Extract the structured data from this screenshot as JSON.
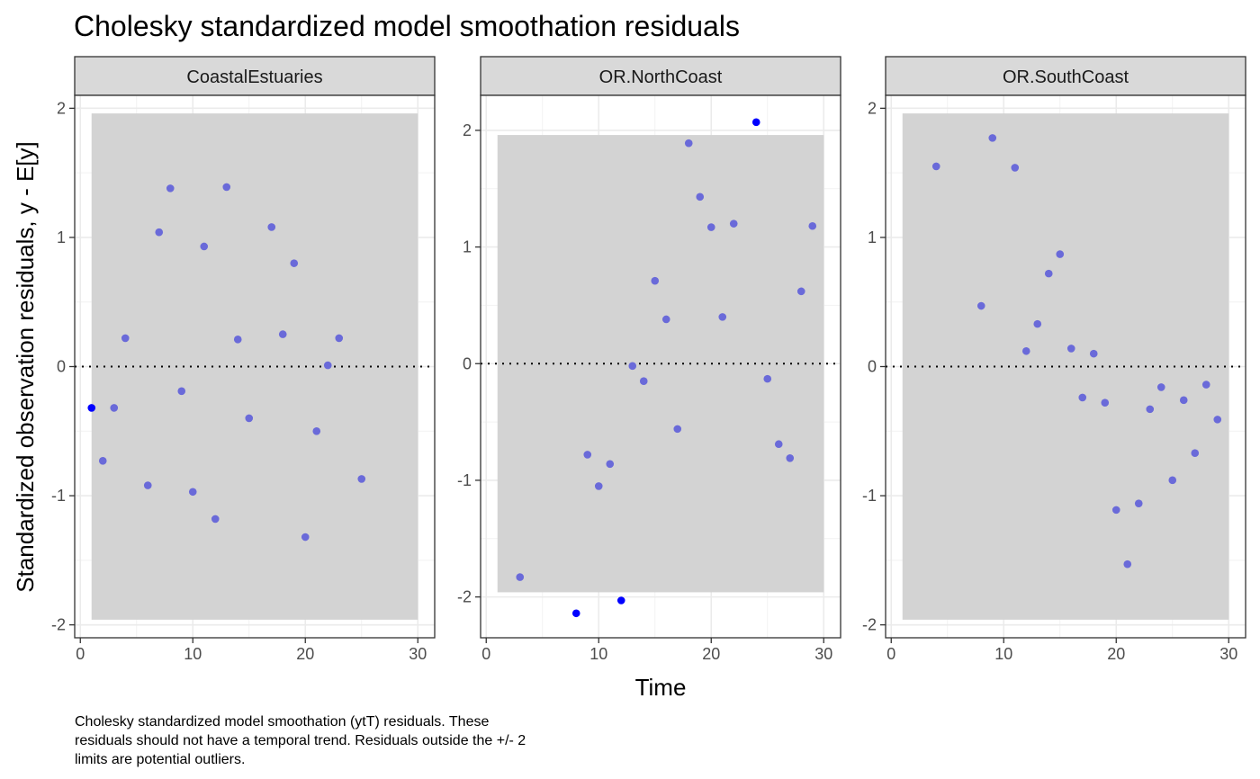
{
  "chart_data": {
    "type": "scatter",
    "title": "Cholesky standardized model smoothation residuals",
    "xlabel": "Time",
    "ylabel": "Standardized observation residuals, y - E[y]",
    "caption": [
      "Cholesky standardized model smoothation (ytT) residuals. These",
      "residuals should not have a temporal trend. Residuals outside the +/- 2",
      "limits are potential outliers."
    ],
    "xlim": [
      -0.5,
      31.5
    ],
    "xticks": [
      0,
      10,
      20,
      30
    ],
    "band": {
      "x": [
        1,
        30
      ],
      "y": [
        -1.96,
        1.96
      ]
    },
    "hline": 0,
    "grid": true,
    "colors": {
      "point": "#6a6ad9",
      "outlier": "#0000ff",
      "band": "#d3d3d3",
      "strip": "#d9d9d9"
    },
    "panels": [
      {
        "name": "CoastalEstuaries",
        "ylim": [
          -2.1,
          2.1
        ],
        "yticks": [
          -2,
          -1,
          0,
          1,
          2
        ],
        "points": [
          {
            "x": 2,
            "y": -0.73
          },
          {
            "x": 3,
            "y": -0.32
          },
          {
            "x": 4,
            "y": 0.22
          },
          {
            "x": 6,
            "y": -0.92
          },
          {
            "x": 7,
            "y": 1.04
          },
          {
            "x": 8,
            "y": 1.38
          },
          {
            "x": 9,
            "y": -0.19
          },
          {
            "x": 10,
            "y": -0.97
          },
          {
            "x": 11,
            "y": 0.93
          },
          {
            "x": 12,
            "y": -1.18
          },
          {
            "x": 13,
            "y": 1.39
          },
          {
            "x": 14,
            "y": 0.21
          },
          {
            "x": 15,
            "y": -0.4
          },
          {
            "x": 17,
            "y": 1.08
          },
          {
            "x": 18,
            "y": 0.25
          },
          {
            "x": 19,
            "y": 0.8
          },
          {
            "x": 20,
            "y": -1.32
          },
          {
            "x": 21,
            "y": -0.5
          },
          {
            "x": 22,
            "y": 0.01
          },
          {
            "x": 23,
            "y": 0.22
          },
          {
            "x": 25,
            "y": -0.87
          }
        ],
        "outliers": [
          {
            "x": 1,
            "y": -0.32
          }
        ]
      },
      {
        "name": "OR.NorthCoast",
        "ylim": [
          -2.35,
          2.3
        ],
        "yticks": [
          -2,
          -1,
          0,
          1,
          2
        ],
        "points": [
          {
            "x": 3,
            "y": -1.83
          },
          {
            "x": 9,
            "y": -0.78
          },
          {
            "x": 10,
            "y": -1.05
          },
          {
            "x": 11,
            "y": -0.86
          },
          {
            "x": 13,
            "y": -0.02
          },
          {
            "x": 14,
            "y": -0.15
          },
          {
            "x": 15,
            "y": 0.71
          },
          {
            "x": 16,
            "y": 0.38
          },
          {
            "x": 17,
            "y": -0.56
          },
          {
            "x": 18,
            "y": 1.89
          },
          {
            "x": 19,
            "y": 1.43
          },
          {
            "x": 20,
            "y": 1.17
          },
          {
            "x": 21,
            "y": 0.4
          },
          {
            "x": 22,
            "y": 1.2
          },
          {
            "x": 25,
            "y": -0.13
          },
          {
            "x": 26,
            "y": -0.69
          },
          {
            "x": 27,
            "y": -0.81
          },
          {
            "x": 28,
            "y": 0.62
          },
          {
            "x": 29,
            "y": 1.18
          }
        ],
        "outliers": [
          {
            "x": 8,
            "y": -2.14
          },
          {
            "x": 12,
            "y": -2.03
          },
          {
            "x": 24,
            "y": 2.07
          }
        ]
      },
      {
        "name": "OR.SouthCoast",
        "ylim": [
          -2.1,
          2.1
        ],
        "yticks": [
          -2,
          -1,
          0,
          1,
          2
        ],
        "points": [
          {
            "x": 4,
            "y": 1.55
          },
          {
            "x": 8,
            "y": 0.47
          },
          {
            "x": 9,
            "y": 1.77
          },
          {
            "x": 11,
            "y": 1.54
          },
          {
            "x": 12,
            "y": 0.12
          },
          {
            "x": 13,
            "y": 0.33
          },
          {
            "x": 14,
            "y": 0.72
          },
          {
            "x": 15,
            "y": 0.87
          },
          {
            "x": 16,
            "y": 0.14
          },
          {
            "x": 17,
            "y": -0.24
          },
          {
            "x": 18,
            "y": 0.1
          },
          {
            "x": 19,
            "y": -0.28
          },
          {
            "x": 20,
            "y": -1.11
          },
          {
            "x": 21,
            "y": -1.53
          },
          {
            "x": 22,
            "y": -1.06
          },
          {
            "x": 23,
            "y": -0.33
          },
          {
            "x": 24,
            "y": -0.16
          },
          {
            "x": 25,
            "y": -0.88
          },
          {
            "x": 26,
            "y": -0.26
          },
          {
            "x": 27,
            "y": -0.67
          },
          {
            "x": 28,
            "y": -0.14
          },
          {
            "x": 29,
            "y": -0.41
          }
        ],
        "outliers": []
      }
    ]
  }
}
